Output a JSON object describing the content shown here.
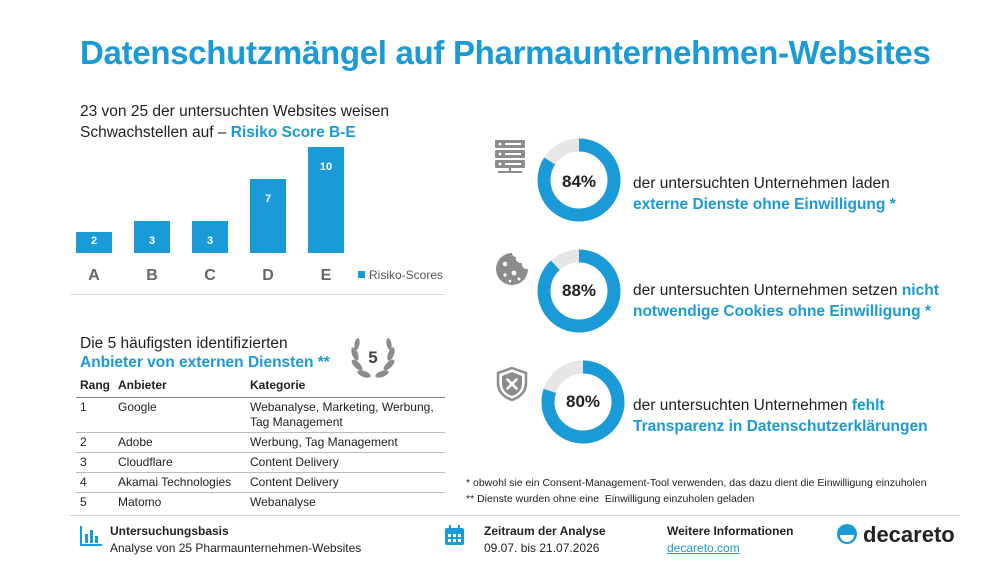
{
  "title": "Datenschutzmängel auf Pharmaunternehmen-Websites",
  "chart_subtitle": {
    "line1": "23 von 25 der untersuchten Websites weisen",
    "line2": "Schwachstellen auf – ",
    "highlight": "Risiko Score B-E"
  },
  "chart_data": {
    "type": "bar",
    "categories": [
      "A",
      "B",
      "C",
      "D",
      "E"
    ],
    "series": [
      {
        "name": "Risiko-Scores",
        "values": [
          2,
          3,
          3,
          7,
          10
        ]
      }
    ],
    "ylim": [
      0,
      10
    ],
    "legend": "right",
    "color": "#1a9ad6"
  },
  "top5": {
    "title_line1": "Die 5 häufigsten identifizierten",
    "title_line2": "Anbieter von externen Diensten **",
    "badge": "5",
    "headers": [
      "Rang",
      "Anbieter",
      "Kategorie"
    ],
    "rows": [
      [
        "1",
        "Google",
        "Webanalyse, Marketing, Werbung, Tag Management"
      ],
      [
        "2",
        "Adobe",
        "Werbung, Tag Management"
      ],
      [
        "3",
        "Cloudflare",
        "Content Delivery"
      ],
      [
        "4",
        "Akamai Technologies",
        "Content Delivery"
      ],
      [
        "5",
        "Matomo",
        "Webanalyse"
      ]
    ]
  },
  "stats": [
    {
      "icon": "server-icon",
      "value": 84,
      "label": "84%",
      "text": "der untersuchten Unternehmen laden",
      "highlight": "externe Dienste ohne Einwilligung *"
    },
    {
      "icon": "cookie-icon",
      "value": 88,
      "label": "88%",
      "text": "der untersuchten Unternehmen setzen ",
      "highlight": "nicht notwendige Cookies ohne Einwilligung *"
    },
    {
      "icon": "shield-x-icon",
      "value": 80,
      "label": "80%",
      "text": "der untersuchten Unternehmen ",
      "highlight": "fehlt Transparenz in Datenschutzerklärungen"
    }
  ],
  "footnotes": {
    "note1": "* obwohl sie ein Consent-Management-Tool verwenden, das dazu dient die Einwilligung einzuholen",
    "note2": "** Dienste wurden ohne eine  Einwilligung einzuholen geladen"
  },
  "footer": {
    "basis_title": "Untersuchungsbasis",
    "basis_text": "Analyse von 25 Pharmaunternehmen-Websites",
    "period_title": "Zeitraum der Analyse",
    "period_text": "09.07. bis 21.07.2026",
    "info_title": "Weitere Informationen",
    "info_link": "decareto.com",
    "logo_text": "decareto"
  },
  "colors": {
    "accent": "#1a9ad6",
    "donut_track": "#e6e6e6",
    "icon_gray": "#8c8c8c"
  }
}
